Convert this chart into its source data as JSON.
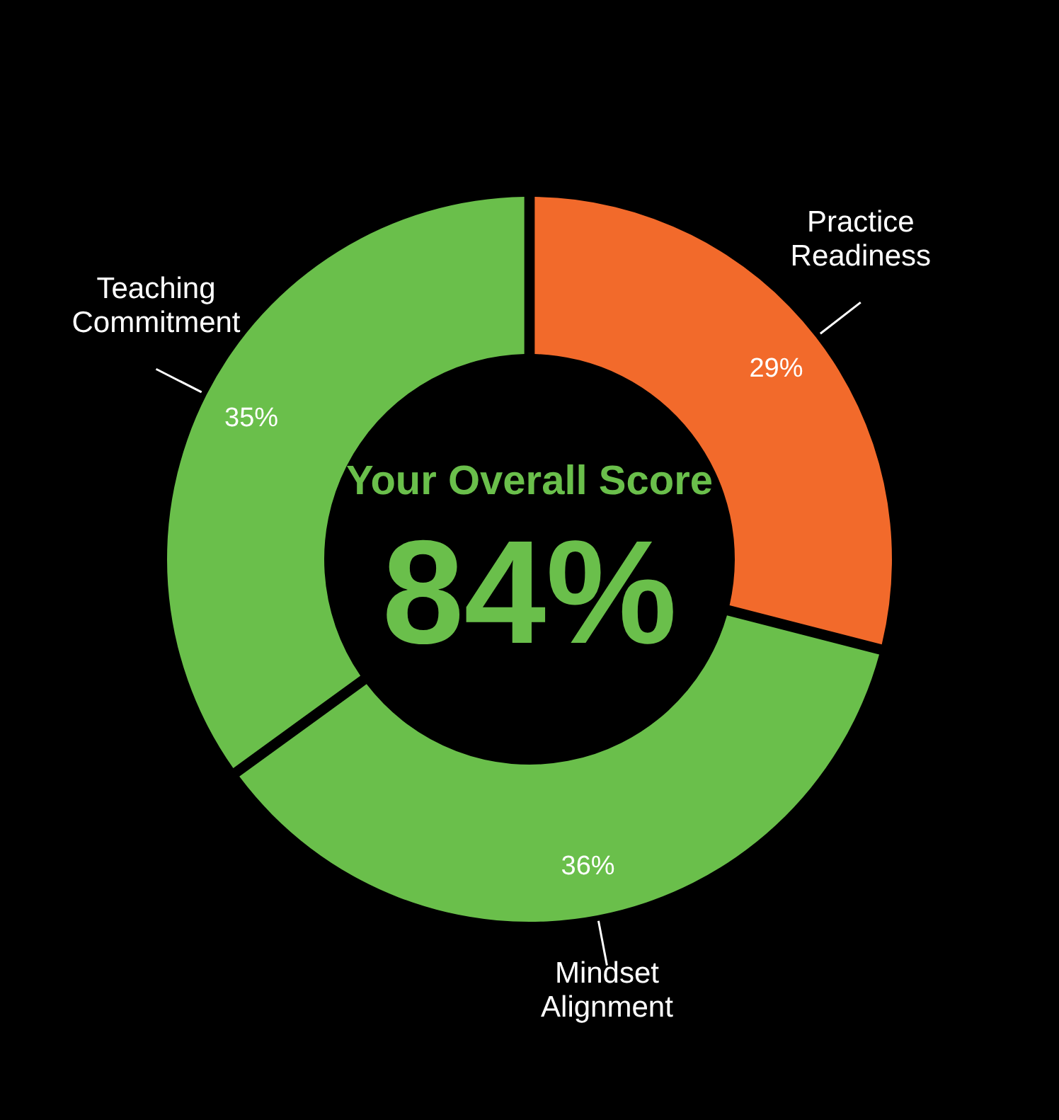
{
  "chart_data": {
    "type": "donut",
    "title": "Your Overall Score",
    "annotations": [
      "84%"
    ],
    "categories": [
      "Practice Readiness",
      "Mindset Alignment",
      "Teaching Commitment"
    ],
    "values": [
      29,
      36,
      35
    ],
    "colors": [
      "#f26a2b",
      "#6abf4b",
      "#6abf4b"
    ],
    "value_labels": [
      "29%",
      "36%",
      "35%"
    ]
  }
}
